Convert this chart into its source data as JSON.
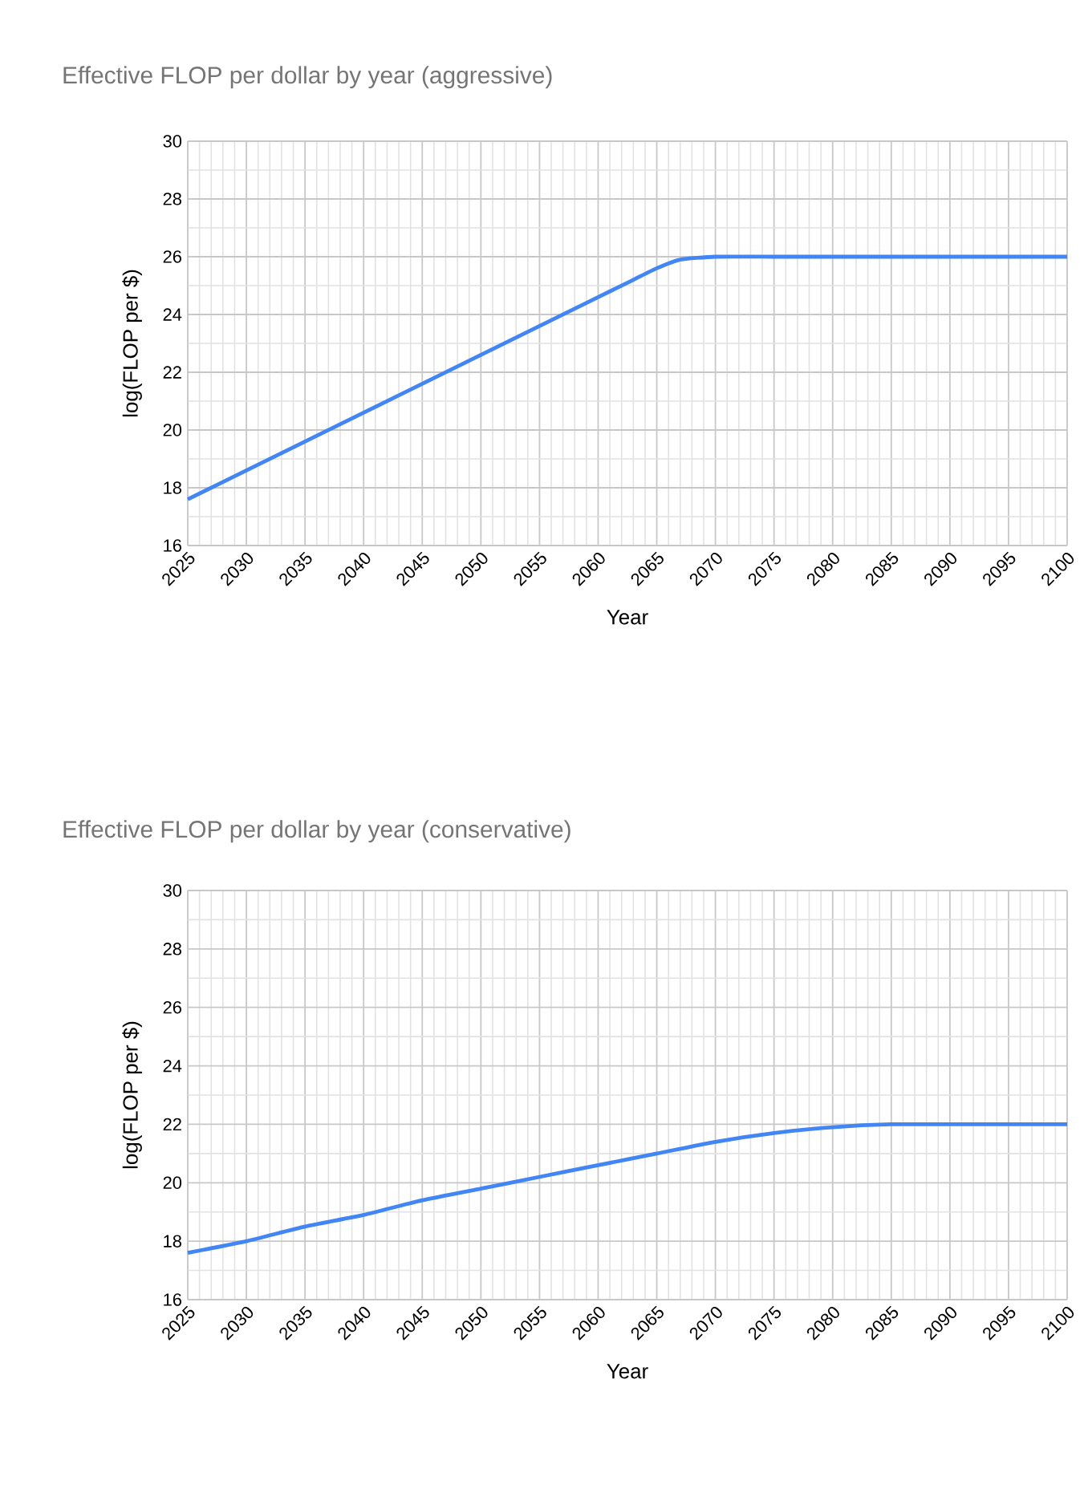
{
  "chart_data": [
    {
      "type": "line",
      "title": "Effective FLOP per dollar by year (aggressive)",
      "xlabel": "Year",
      "ylabel": "log(FLOP per $)",
      "x": [
        2025,
        2030,
        2035,
        2040,
        2045,
        2050,
        2055,
        2060,
        2063,
        2065,
        2067,
        2070,
        2075,
        2080,
        2090,
        2100
      ],
      "series": [
        {
          "color": "#4285f4",
          "values": [
            17.6,
            18.6,
            19.6,
            20.6,
            21.6,
            22.6,
            23.6,
            24.6,
            25.2,
            25.6,
            25.9,
            26.0,
            26.0,
            26.0,
            26.0,
            26.0
          ]
        }
      ],
      "xlim": [
        2025,
        2100
      ],
      "ylim": [
        16,
        30
      ],
      "xticks": [
        2025,
        2030,
        2035,
        2040,
        2045,
        2050,
        2055,
        2060,
        2065,
        2070,
        2075,
        2080,
        2085,
        2090,
        2095,
        2100
      ],
      "yticks": [
        16,
        18,
        20,
        22,
        24,
        26,
        28,
        30
      ],
      "grid": true
    },
    {
      "type": "line",
      "title": "Effective FLOP per dollar by year (conservative)",
      "xlabel": "Year",
      "ylabel": "log(FLOP per $)",
      "x": [
        2025,
        2030,
        2035,
        2040,
        2045,
        2050,
        2055,
        2060,
        2065,
        2070,
        2075,
        2080,
        2085,
        2090,
        2100
      ],
      "series": [
        {
          "color": "#4285f4",
          "values": [
            17.6,
            18.0,
            18.5,
            18.9,
            19.4,
            19.8,
            20.2,
            20.6,
            21.0,
            21.4,
            21.7,
            21.9,
            22.0,
            22.0,
            22.0
          ]
        }
      ],
      "xlim": [
        2025,
        2100
      ],
      "ylim": [
        16,
        30
      ],
      "xticks": [
        2025,
        2030,
        2035,
        2040,
        2045,
        2050,
        2055,
        2060,
        2065,
        2070,
        2075,
        2080,
        2085,
        2090,
        2095,
        2100
      ],
      "yticks": [
        16,
        18,
        20,
        22,
        24,
        26,
        28,
        30
      ],
      "grid": true
    }
  ]
}
